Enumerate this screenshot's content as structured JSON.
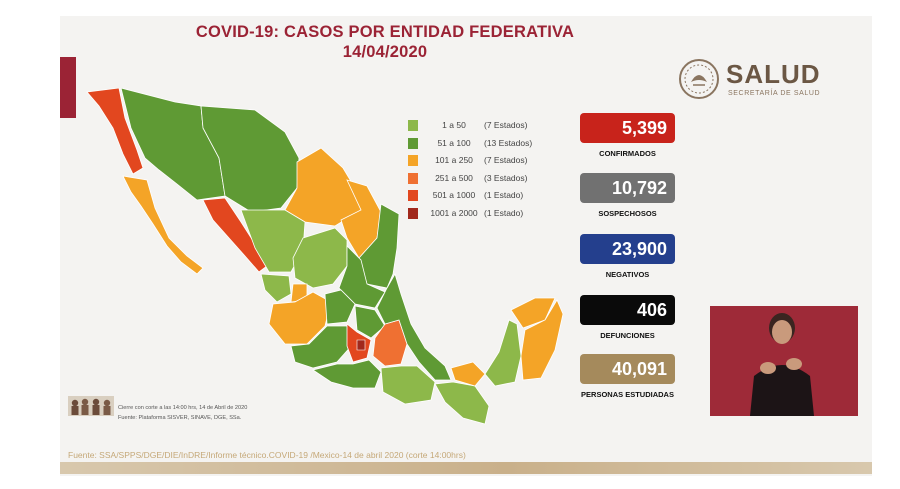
{
  "slide": {
    "title_line1": "COVID-19: CASOS POR ENTIDAD FEDERATIVA",
    "title_line2": "14/04/2020"
  },
  "logo": {
    "title": "SALUD",
    "subtitle": "SECRETARÍA DE SALUD"
  },
  "legend": [
    {
      "range": "1 a 50",
      "count": "(7 Estados)",
      "color": "#8db84a"
    },
    {
      "range": "51 a 100",
      "count": "(13 Estados)",
      "color": "#5f9a34"
    },
    {
      "range": "101 a 250",
      "count": "(7 Estados)",
      "color": "#f4a427"
    },
    {
      "range": "251 a 500",
      "count": "(3 Estados)",
      "color": "#ef7032"
    },
    {
      "range": "501 a 1000",
      "count": "(1 Estado)",
      "color": "#e2471f"
    },
    {
      "range": "1001 a 2000",
      "count": "(1 Estado)",
      "color": "#a1281c"
    }
  ],
  "stats": [
    {
      "value": "5,399",
      "label": "CONFIRMADOS",
      "color": "#c8231b"
    },
    {
      "value": "10,792",
      "label": "SOSPECHOSOS",
      "color": "#717171"
    },
    {
      "value": "23,900",
      "label": "NEGATIVOS",
      "color": "#243f8d"
    },
    {
      "value": "406",
      "label": "DEFUNCIONES",
      "color": "#0a0a0a"
    },
    {
      "value": "40,091",
      "label": "PERSONAS ESTUDIADAS",
      "color": "#a58a5c"
    }
  ],
  "footnotes": {
    "cierre": "Cierre con corte a las 14:00 hrs, 14 de Abril de 2020",
    "fuente": "Fuente: Plataforma SISVER, SINAVE, DGE, SSa."
  },
  "source": "Fuente: SSA/SPPS/DGE/DIE/InDRE/Informe técnico.COVID-19 /Mexico-14 de abril 2020 (corte 14:00hrs)"
}
